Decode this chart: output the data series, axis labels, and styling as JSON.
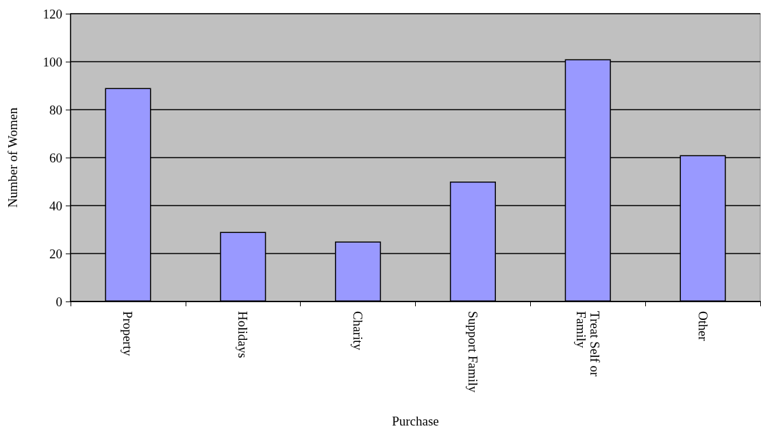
{
  "chart_data": {
    "type": "bar",
    "xlabel": "Purchase",
    "ylabel": "Number of Women",
    "categories": [
      "Property",
      "Holidays",
      "Charity",
      "Support Family",
      "Treat Self or Family",
      "Other"
    ],
    "values": [
      89,
      29,
      25,
      50,
      101,
      61
    ],
    "color": "#9999ff",
    "ylim": [
      0,
      120
    ],
    "yticks": [
      0,
      20,
      40,
      60,
      80,
      100,
      120
    ],
    "grid": "y"
  }
}
